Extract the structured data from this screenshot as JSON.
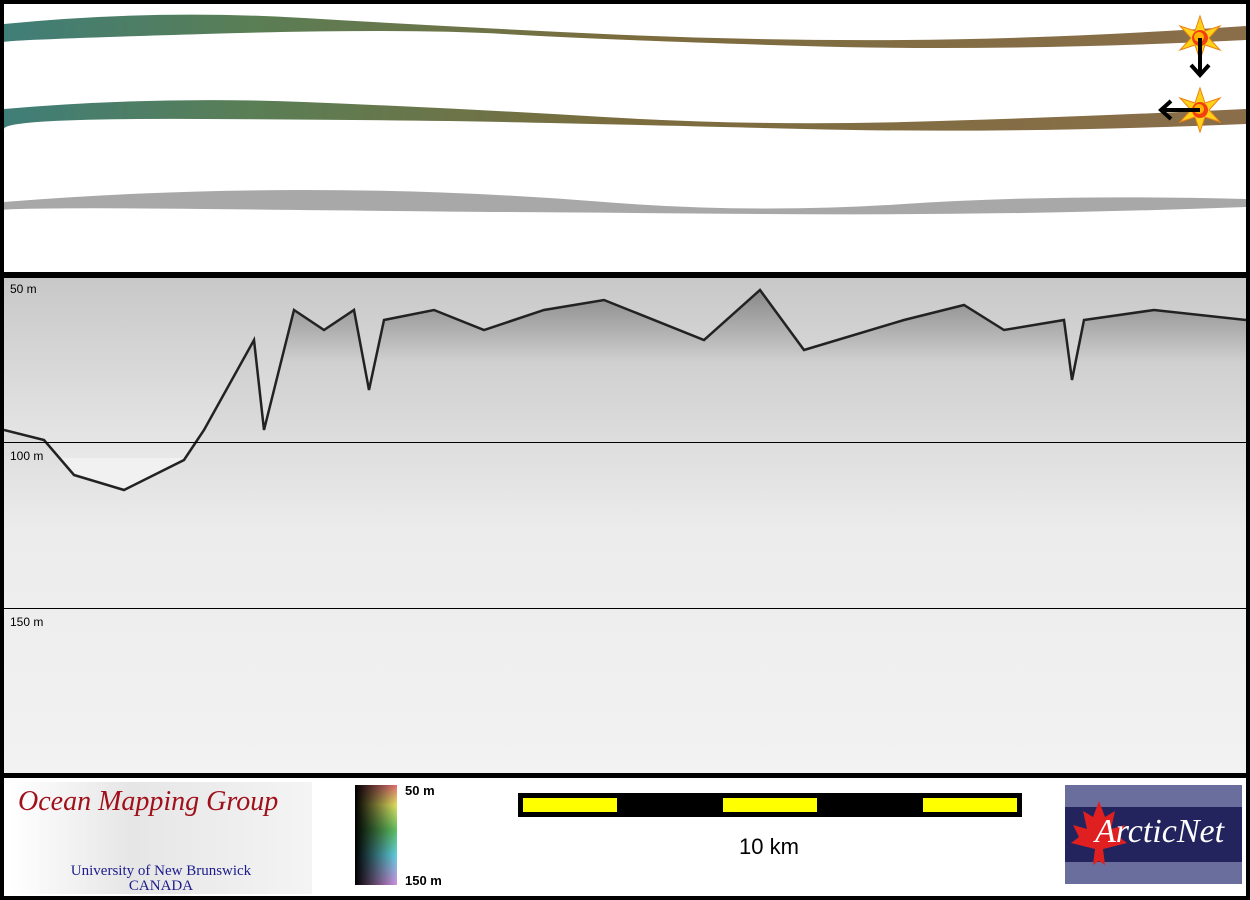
{
  "echogram": {
    "depth_labels": [
      "50 m",
      "100 m",
      "150 m"
    ]
  },
  "legend": {
    "logo_left": {
      "title": "Ocean Mapping Group",
      "line1": "University of New Brunswick",
      "line2": "CANADA"
    },
    "colorbar": {
      "top_label": "50 m",
      "bottom_label": "150 m"
    },
    "scale_bar": {
      "label": "10 km",
      "colors": [
        "#000000",
        "#ffff00"
      ]
    },
    "logo_right": {
      "name": "ArcticNet"
    }
  },
  "markers": {
    "icons": [
      "sun-star-icon",
      "arrow-down-icon",
      "sun-star-icon",
      "arrow-left-icon"
    ]
  }
}
